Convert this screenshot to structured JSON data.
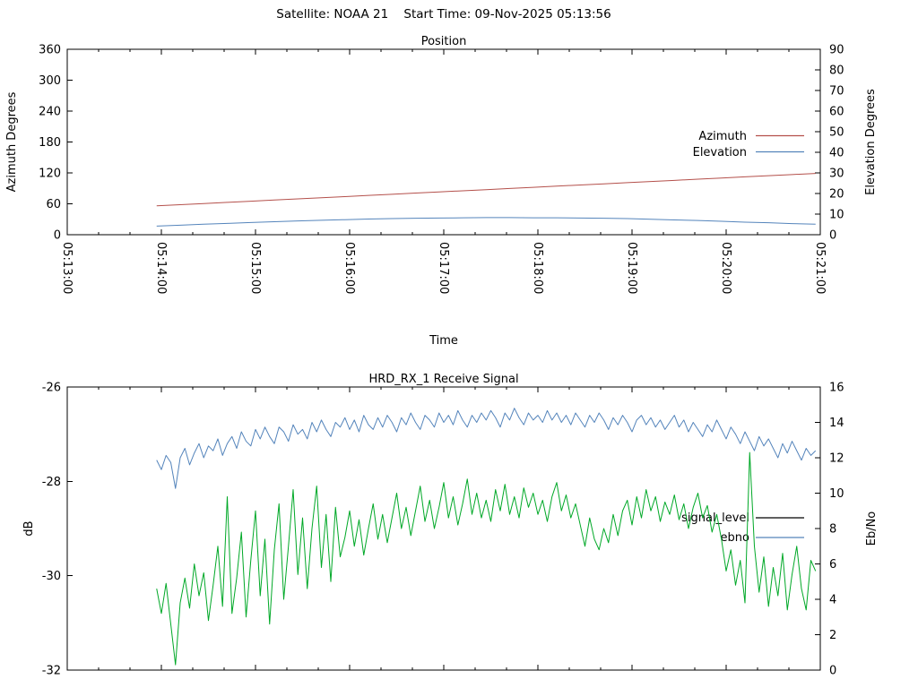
{
  "header": {
    "title": "Satellite: NOAA 21    Start Time: 09-Nov-2025 05:13:56"
  },
  "colors": {
    "azimuth_red": "#b4504b",
    "steel_blue": "#5484bb",
    "signal_green": "#00a827",
    "legend_black": "#000000",
    "axis_black": "#000000",
    "background": "#ffffff"
  },
  "chart_data": [
    {
      "type": "line",
      "title": "Position",
      "xlabel": "Time",
      "ylabel_left": "Azimuth Degrees",
      "ylabel_right": "Elevation Degrees",
      "x_tick_labels": [
        "05:13:00",
        "05:14:00",
        "05:15:00",
        "05:16:00",
        "05:17:00",
        "05:18:00",
        "05:19:00",
        "05:20:00",
        "05:21:00"
      ],
      "x_range_seconds": [
        0,
        480
      ],
      "x_major_step_seconds": 60,
      "x_minor_step_seconds": 20,
      "ylim_left": [
        0,
        360
      ],
      "yticks_left": [
        0,
        60,
        120,
        180,
        240,
        300,
        360
      ],
      "ylim_right": [
        0,
        90
      ],
      "yticks_right": [
        0,
        10,
        20,
        30,
        40,
        50,
        60,
        70,
        80,
        90
      ],
      "grid": false,
      "legend_position": "inside top-right",
      "legend": [
        {
          "label": "Azimuth",
          "sample_color": "#b4504b"
        },
        {
          "label": "Elevation",
          "sample_color": "#5484bb"
        }
      ],
      "t_start": 57,
      "t_step": 15,
      "series": [
        {
          "name": "Azimuth",
          "axis": "left",
          "color": "#b4504b",
          "values": [
            56.0,
            58.3,
            60.5,
            62.8,
            65.0,
            67.3,
            69.5,
            71.8,
            74.0,
            76.3,
            78.5,
            80.8,
            83.0,
            85.3,
            87.5,
            89.8,
            92.0,
            94.3,
            96.5,
            98.8,
            101.0,
            103.3,
            105.5,
            107.8,
            110.0,
            112.3,
            114.5,
            116.8,
            119.0
          ]
        },
        {
          "name": "Elevation",
          "axis": "right",
          "color": "#5484bb",
          "values": [
            4.2,
            4.6,
            5.1,
            5.5,
            5.9,
            6.3,
            6.7,
            7.0,
            7.3,
            7.6,
            7.8,
            8.0,
            8.1,
            8.2,
            8.3,
            8.3,
            8.2,
            8.2,
            8.1,
            8.0,
            7.8,
            7.5,
            7.2,
            6.9,
            6.5,
            6.1,
            5.8,
            5.4,
            5.1
          ]
        }
      ]
    },
    {
      "type": "line",
      "title": "HRD_RX_1 Receive Signal",
      "xlabel": "",
      "ylabel_left": "dB",
      "ylabel_right": "Eb/No",
      "x_tick_labels": [],
      "x_range_seconds": [
        0,
        480
      ],
      "x_major_step_seconds": 60,
      "x_minor_step_seconds": 20,
      "ylim_left": [
        -32,
        -26
      ],
      "yticks_left": [
        -26,
        -28,
        -30,
        -32
      ],
      "ylim_right": [
        0,
        16
      ],
      "yticks_right": [
        0,
        2,
        4,
        6,
        8,
        10,
        12,
        14,
        16
      ],
      "grid": false,
      "legend_position": "inside right",
      "legend": [
        {
          "label": "signal_level",
          "sample_color": "#000000"
        },
        {
          "label": "ebno",
          "sample_color": "#5484bb"
        }
      ],
      "t_start": 57,
      "t_step": 3,
      "series": [
        {
          "name": "signal_level",
          "axis": "left",
          "color": "#5484bb",
          "values": [
            -27.55,
            -27.75,
            -27.45,
            -27.6,
            -28.15,
            -27.5,
            -27.3,
            -27.65,
            -27.4,
            -27.2,
            -27.5,
            -27.25,
            -27.35,
            -27.1,
            -27.45,
            -27.2,
            -27.05,
            -27.3,
            -26.95,
            -27.15,
            -27.25,
            -26.9,
            -27.1,
            -26.85,
            -27.05,
            -27.2,
            -26.85,
            -26.95,
            -27.15,
            -26.8,
            -27.0,
            -26.9,
            -27.1,
            -26.75,
            -26.95,
            -26.7,
            -26.9,
            -27.05,
            -26.75,
            -26.85,
            -26.65,
            -26.9,
            -26.7,
            -26.95,
            -26.6,
            -26.8,
            -26.9,
            -26.65,
            -26.85,
            -26.6,
            -26.75,
            -26.95,
            -26.65,
            -26.8,
            -26.55,
            -26.75,
            -26.9,
            -26.6,
            -26.7,
            -26.85,
            -26.55,
            -26.75,
            -26.6,
            -26.8,
            -26.5,
            -26.7,
            -26.85,
            -26.6,
            -26.75,
            -26.55,
            -26.7,
            -26.5,
            -26.65,
            -26.85,
            -26.55,
            -26.7,
            -26.45,
            -26.65,
            -26.8,
            -26.55,
            -26.7,
            -26.6,
            -26.75,
            -26.5,
            -26.7,
            -26.55,
            -26.75,
            -26.6,
            -26.8,
            -26.55,
            -26.7,
            -26.85,
            -26.6,
            -26.75,
            -26.55,
            -26.7,
            -26.9,
            -26.65,
            -26.8,
            -26.6,
            -26.75,
            -26.95,
            -26.7,
            -26.6,
            -26.8,
            -26.65,
            -26.85,
            -26.7,
            -26.9,
            -26.75,
            -26.6,
            -26.85,
            -26.7,
            -26.95,
            -26.75,
            -26.9,
            -27.05,
            -26.8,
            -26.95,
            -26.7,
            -26.9,
            -27.1,
            -26.85,
            -27.0,
            -27.2,
            -26.95,
            -27.15,
            -27.35,
            -27.05,
            -27.25,
            -27.1,
            -27.3,
            -27.5,
            -27.2,
            -27.4,
            -27.15,
            -27.35,
            -27.55,
            -27.3,
            -27.45,
            -27.35
          ]
        },
        {
          "name": "ebno",
          "axis": "right",
          "color": "#00a827",
          "values": [
            4.6,
            3.2,
            4.9,
            2.6,
            0.3,
            3.8,
            5.2,
            3.5,
            6.0,
            4.2,
            5.5,
            2.8,
            4.8,
            7.0,
            3.6,
            9.8,
            3.2,
            5.2,
            7.8,
            3.0,
            6.2,
            9.0,
            4.2,
            7.4,
            2.6,
            6.8,
            9.4,
            4.0,
            7.0,
            10.2,
            5.4,
            8.6,
            4.6,
            8.0,
            10.4,
            5.8,
            8.8,
            5.0,
            9.2,
            6.4,
            7.5,
            9.0,
            7.0,
            8.5,
            6.5,
            8.0,
            9.4,
            7.4,
            8.8,
            7.2,
            8.6,
            10.0,
            8.0,
            9.2,
            7.6,
            9.0,
            10.4,
            8.4,
            9.6,
            8.0,
            9.2,
            10.6,
            8.6,
            9.8,
            8.2,
            9.4,
            10.8,
            8.8,
            10.0,
            8.6,
            9.6,
            8.4,
            10.2,
            9.0,
            10.5,
            8.8,
            9.8,
            8.6,
            10.3,
            9.2,
            10.0,
            8.8,
            9.6,
            8.4,
            9.8,
            10.6,
            9.0,
            9.9,
            8.6,
            9.4,
            8.2,
            7.0,
            8.6,
            7.4,
            6.8,
            8.0,
            7.2,
            8.8,
            7.6,
            9.0,
            9.6,
            8.2,
            9.8,
            8.6,
            10.2,
            9.0,
            9.8,
            8.4,
            9.5,
            8.8,
            9.9,
            8.5,
            9.4,
            8.0,
            9.2,
            10.0,
            8.6,
            9.3,
            7.8,
            8.8,
            7.4,
            5.6,
            6.8,
            4.8,
            6.2,
            3.8,
            12.3,
            7.0,
            4.4,
            6.4,
            3.6,
            5.8,
            4.2,
            6.6,
            3.4,
            5.4,
            7.0,
            4.6,
            3.4,
            6.2,
            5.6
          ]
        }
      ]
    }
  ]
}
